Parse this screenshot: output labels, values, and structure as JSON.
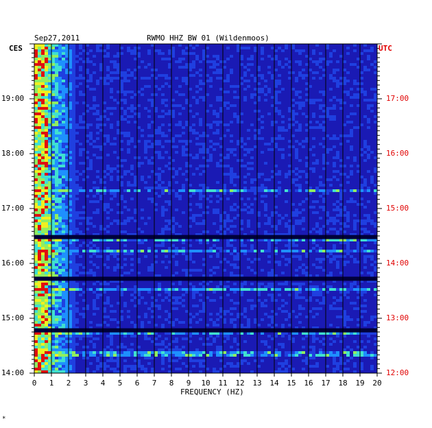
{
  "chart_data": {
    "type": "heatmap",
    "title_left": "Sep27,2011",
    "title_center": "RWMO HHZ BW 01 (Wildenmoos)",
    "xlabel": "FREQUENCY (HZ)",
    "left_tz": "CES",
    "right_tz": "UTC",
    "xlim": [
      0,
      20
    ],
    "x_ticks": [
      "0",
      "1",
      "2",
      "3",
      "4",
      "5",
      "6",
      "7",
      "8",
      "9",
      "10",
      "11",
      "12",
      "13",
      "14",
      "15",
      "16",
      "17",
      "18",
      "19",
      "20"
    ],
    "left_ticks": [
      {
        "label": "19:00",
        "hour": 19
      },
      {
        "label": "18:00",
        "hour": 18
      },
      {
        "label": "17:00",
        "hour": 17
      },
      {
        "label": "16:00",
        "hour": 16
      },
      {
        "label": "15:00",
        "hour": 15
      },
      {
        "label": "14:00",
        "hour": 14
      }
    ],
    "right_ticks": [
      {
        "label": "17:00",
        "hour": 17
      },
      {
        "label": "16:00",
        "hour": 16
      },
      {
        "label": "15:00",
        "hour": 15
      },
      {
        "label": "14:00",
        "hour": 14
      },
      {
        "label": "13:00",
        "hour": 13
      },
      {
        "label": "12:00",
        "hour": 12
      }
    ],
    "time_range_ces": [
      14.0,
      20.0
    ],
    "grid": true,
    "colors": {
      "background": "#1a1ab4",
      "grid": "#000000",
      "low": "#0a0a8c",
      "mid": "#1e90ff",
      "cyan": "#40e0d0",
      "yellow": "#f0f020",
      "red": "#e01010"
    },
    "energy_bands": [
      {
        "from_hz": 0.0,
        "to_hz": 0.8,
        "level": "high"
      },
      {
        "from_hz": 0.8,
        "to_hz": 2.5,
        "level": "medium"
      }
    ],
    "dark_gaps_ces": [
      16.48,
      15.72,
      14.78
    ],
    "bright_lines_ces": [
      16.22,
      16.45,
      17.32,
      15.52,
      14.73,
      14.35
    ]
  },
  "footnote": "*"
}
